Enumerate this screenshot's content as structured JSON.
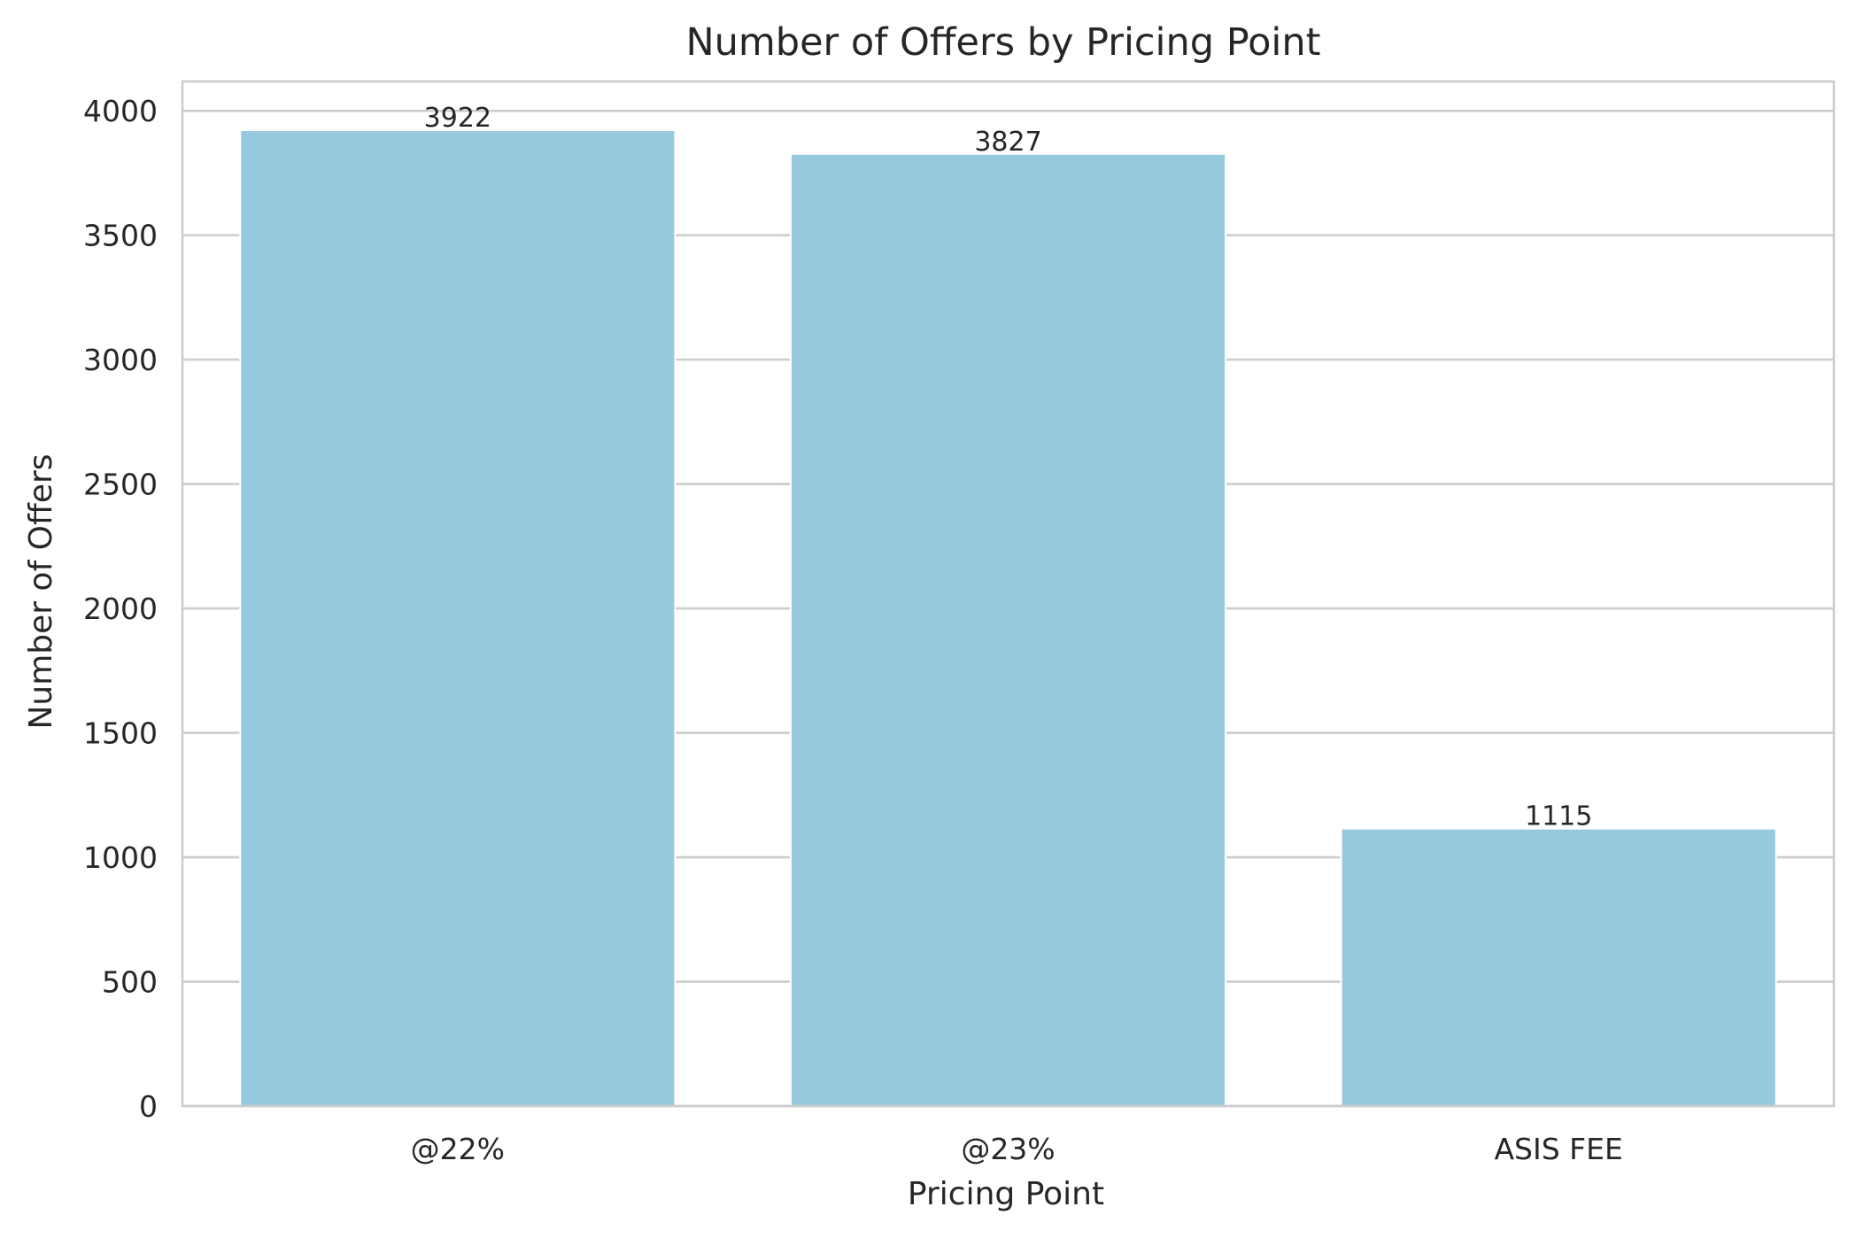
{
  "chart_data": {
    "type": "bar",
    "title": "Number of Offers by Pricing Point",
    "xlabel": "Pricing Point",
    "ylabel": "Number of Offers",
    "categories": [
      "@22%",
      "@23%",
      "ASIS FEE"
    ],
    "values": [
      3922,
      3827,
      1115
    ],
    "data_labels": [
      "3922",
      "3827",
      "1115"
    ],
    "ylim": [
      0,
      4118
    ],
    "yticks": [
      0,
      500,
      1000,
      1500,
      2000,
      2500,
      3000,
      3500,
      4000
    ],
    "ytick_labels": [
      "0",
      "500",
      "1000",
      "1500",
      "2000",
      "2500",
      "3000",
      "3500",
      "4000"
    ],
    "grid": "horizontal",
    "legend": "none",
    "colors": {
      "bar": "#96c9de",
      "grid": "#cccccc",
      "frame": "#cccccc",
      "text": "#262626",
      "background": "#ffffff"
    }
  }
}
